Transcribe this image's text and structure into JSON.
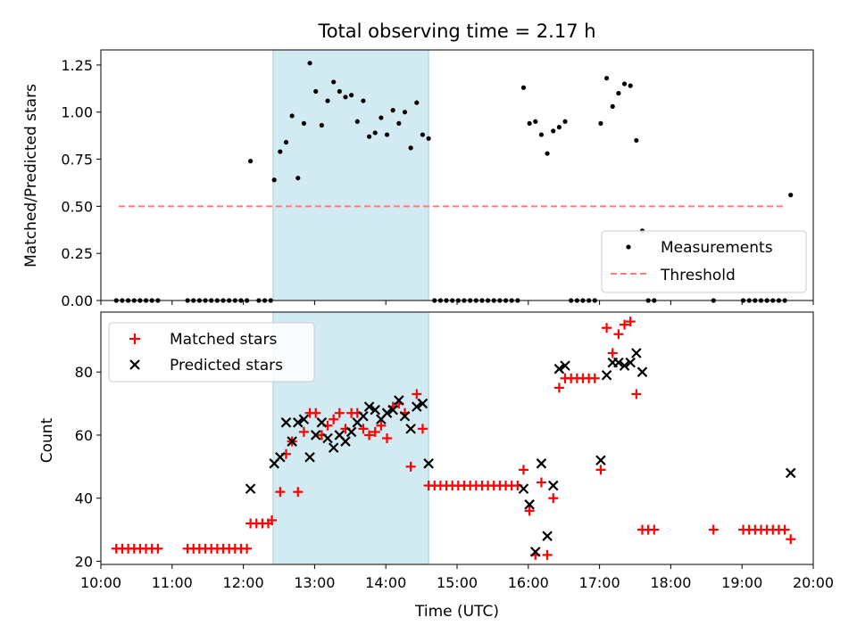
{
  "chart_data": [
    {
      "type": "scatter",
      "title": "Total observing time = 2.17 h",
      "xlabel": "",
      "ylabel": "Matched/Predicted stars",
      "xlim": [
        "10:00",
        "20:00"
      ],
      "ylim": [
        0,
        1.33
      ],
      "yticks": [
        "0.00",
        "0.25",
        "0.50",
        "0.75",
        "1.00",
        "1.25"
      ],
      "shaded_span": [
        "12:25",
        "14:36"
      ],
      "legend_position": "lower right",
      "series": [
        {
          "name": "Measurements",
          "marker": "dot",
          "color": "#000000",
          "points": [
            [
              "10:13",
              0
            ],
            [
              "10:18",
              0
            ],
            [
              "10:23",
              0
            ],
            [
              "10:28",
              0
            ],
            [
              "10:33",
              0
            ],
            [
              "10:38",
              0
            ],
            [
              "10:43",
              0
            ],
            [
              "10:48",
              0
            ],
            [
              "11:13",
              0
            ],
            [
              "11:18",
              0
            ],
            [
              "11:23",
              0
            ],
            [
              "11:28",
              0
            ],
            [
              "11:33",
              0
            ],
            [
              "11:38",
              0
            ],
            [
              "11:43",
              0
            ],
            [
              "11:48",
              0
            ],
            [
              "11:53",
              0
            ],
            [
              "11:58",
              0
            ],
            [
              "12:03",
              0
            ],
            [
              "12:13",
              0
            ],
            [
              "12:18",
              0
            ],
            [
              "12:23",
              0
            ],
            [
              "12:06",
              0.74
            ],
            [
              "12:26",
              0.64
            ],
            [
              "12:31",
              0.79
            ],
            [
              "12:36",
              0.84
            ],
            [
              "12:41",
              0.98
            ],
            [
              "12:46",
              0.65
            ],
            [
              "12:51",
              0.94
            ],
            [
              "12:56",
              1.26
            ],
            [
              "13:01",
              1.11
            ],
            [
              "13:06",
              0.93
            ],
            [
              "13:11",
              1.06
            ],
            [
              "13:16",
              1.16
            ],
            [
              "13:21",
              1.11
            ],
            [
              "13:26",
              1.08
            ],
            [
              "13:31",
              1.09
            ],
            [
              "13:36",
              0.95
            ],
            [
              "13:41",
              1.06
            ],
            [
              "13:46",
              0.87
            ],
            [
              "13:51",
              0.89
            ],
            [
              "13:56",
              0.97
            ],
            [
              "14:01",
              0.88
            ],
            [
              "14:06",
              1.01
            ],
            [
              "14:11",
              0.94
            ],
            [
              "14:16",
              1.0
            ],
            [
              "14:21",
              0.81
            ],
            [
              "14:26",
              1.05
            ],
            [
              "14:31",
              0.88
            ],
            [
              "14:36",
              0.86
            ],
            [
              "14:41",
              0
            ],
            [
              "14:46",
              0
            ],
            [
              "14:51",
              0
            ],
            [
              "14:56",
              0
            ],
            [
              "15:01",
              0
            ],
            [
              "15:06",
              0
            ],
            [
              "15:11",
              0
            ],
            [
              "15:16",
              0
            ],
            [
              "15:21",
              0
            ],
            [
              "15:26",
              0
            ],
            [
              "15:31",
              0
            ],
            [
              "15:36",
              0
            ],
            [
              "15:41",
              0
            ],
            [
              "15:46",
              0
            ],
            [
              "15:51",
              0
            ],
            [
              "15:56",
              1.13
            ],
            [
              "16:01",
              0.94
            ],
            [
              "16:06",
              0.95
            ],
            [
              "16:11",
              0.88
            ],
            [
              "16:16",
              0.78
            ],
            [
              "16:21",
              0.9
            ],
            [
              "16:26",
              0.92
            ],
            [
              "16:31",
              0.95
            ],
            [
              "16:36",
              0
            ],
            [
              "16:41",
              0
            ],
            [
              "16:46",
              0
            ],
            [
              "16:51",
              0
            ],
            [
              "16:56",
              0
            ],
            [
              "17:01",
              0.94
            ],
            [
              "17:06",
              1.18
            ],
            [
              "17:11",
              1.03
            ],
            [
              "17:16",
              1.1
            ],
            [
              "17:21",
              1.15
            ],
            [
              "17:26",
              1.14
            ],
            [
              "17:31",
              0.85
            ],
            [
              "17:36",
              0.37
            ],
            [
              "17:41",
              0
            ],
            [
              "17:46",
              0
            ],
            [
              "18:36",
              0
            ],
            [
              "19:01",
              0
            ],
            [
              "19:06",
              0
            ],
            [
              "19:11",
              0
            ],
            [
              "19:16",
              0
            ],
            [
              "19:21",
              0
            ],
            [
              "19:26",
              0
            ],
            [
              "19:31",
              0
            ],
            [
              "19:36",
              0
            ],
            [
              "19:41",
              0.56
            ]
          ]
        },
        {
          "name": "Threshold",
          "marker": "dashed-line",
          "color": "#ff7b7b",
          "points": [
            [
              "10:15",
              0.5
            ],
            [
              "19:36",
              0.5
            ]
          ]
        }
      ]
    },
    {
      "type": "scatter",
      "title": "",
      "xlabel": "Time (UTC)",
      "ylabel": "Count",
      "xlim": [
        "10:00",
        "20:00"
      ],
      "ylim": [
        19,
        99
      ],
      "xticks": [
        "10:00",
        "11:00",
        "12:00",
        "13:00",
        "14:00",
        "15:00",
        "16:00",
        "17:00",
        "18:00",
        "19:00",
        "20:00"
      ],
      "yticks": [
        "20",
        "40",
        "60",
        "80"
      ],
      "shaded_span": [
        "12:25",
        "14:36"
      ],
      "legend_position": "upper left",
      "series": [
        {
          "name": "Matched stars",
          "marker": "plus",
          "color": "#ff0000",
          "points": [
            [
              "10:13",
              24
            ],
            [
              "10:18",
              24
            ],
            [
              "10:23",
              24
            ],
            [
              "10:28",
              24
            ],
            [
              "10:33",
              24
            ],
            [
              "10:38",
              24
            ],
            [
              "10:43",
              24
            ],
            [
              "10:48",
              24
            ],
            [
              "11:13",
              24
            ],
            [
              "11:18",
              24
            ],
            [
              "11:23",
              24
            ],
            [
              "11:28",
              24
            ],
            [
              "11:33",
              24
            ],
            [
              "11:38",
              24
            ],
            [
              "11:43",
              24
            ],
            [
              "11:48",
              24
            ],
            [
              "11:53",
              24
            ],
            [
              "11:58",
              24
            ],
            [
              "12:03",
              24
            ],
            [
              "12:06",
              32
            ],
            [
              "12:11",
              32
            ],
            [
              "12:16",
              32
            ],
            [
              "12:21",
              32
            ],
            [
              "12:24",
              33
            ],
            [
              "12:31",
              42
            ],
            [
              "12:36",
              54
            ],
            [
              "12:41",
              58
            ],
            [
              "12:46",
              42
            ],
            [
              "12:51",
              61
            ],
            [
              "12:56",
              67
            ],
            [
              "13:01",
              67
            ],
            [
              "13:06",
              60
            ],
            [
              "13:11",
              63
            ],
            [
              "13:16",
              65
            ],
            [
              "13:21",
              67
            ],
            [
              "13:26",
              62
            ],
            [
              "13:31",
              67
            ],
            [
              "13:36",
              67
            ],
            [
              "13:41",
              62
            ],
            [
              "13:46",
              60
            ],
            [
              "13:51",
              61
            ],
            [
              "13:56",
              63
            ],
            [
              "14:01",
              59
            ],
            [
              "14:06",
              69
            ],
            [
              "14:11",
              70
            ],
            [
              "14:16",
              67
            ],
            [
              "14:21",
              50
            ],
            [
              "14:26",
              73
            ],
            [
              "14:31",
              62
            ],
            [
              "14:36",
              44
            ],
            [
              "14:41",
              44
            ],
            [
              "14:46",
              44
            ],
            [
              "14:51",
              44
            ],
            [
              "14:56",
              44
            ],
            [
              "15:01",
              44
            ],
            [
              "15:06",
              44
            ],
            [
              "15:11",
              44
            ],
            [
              "15:16",
              44
            ],
            [
              "15:21",
              44
            ],
            [
              "15:26",
              44
            ],
            [
              "15:31",
              44
            ],
            [
              "15:36",
              44
            ],
            [
              "15:41",
              44
            ],
            [
              "15:46",
              44
            ],
            [
              "15:51",
              44
            ],
            [
              "15:56",
              49
            ],
            [
              "16:01",
              36
            ],
            [
              "16:06",
              22
            ],
            [
              "16:11",
              45
            ],
            [
              "16:16",
              22
            ],
            [
              "16:21",
              40
            ],
            [
              "16:26",
              75
            ],
            [
              "16:31",
              78
            ],
            [
              "16:36",
              78
            ],
            [
              "16:41",
              78
            ],
            [
              "16:46",
              78
            ],
            [
              "16:51",
              78
            ],
            [
              "16:56",
              78
            ],
            [
              "17:01",
              49
            ],
            [
              "17:06",
              94
            ],
            [
              "17:11",
              86
            ],
            [
              "17:16",
              92
            ],
            [
              "17:21",
              95
            ],
            [
              "17:26",
              96
            ],
            [
              "17:31",
              73
            ],
            [
              "17:36",
              30
            ],
            [
              "17:41",
              30
            ],
            [
              "17:46",
              30
            ],
            [
              "18:36",
              30
            ],
            [
              "19:01",
              30
            ],
            [
              "19:06",
              30
            ],
            [
              "19:11",
              30
            ],
            [
              "19:16",
              30
            ],
            [
              "19:21",
              30
            ],
            [
              "19:26",
              30
            ],
            [
              "19:31",
              30
            ],
            [
              "19:36",
              30
            ],
            [
              "19:41",
              27
            ]
          ]
        },
        {
          "name": "Predicted stars",
          "marker": "x",
          "color": "#000000",
          "points": [
            [
              "12:06",
              43
            ],
            [
              "12:26",
              51
            ],
            [
              "12:31",
              53
            ],
            [
              "12:36",
              64
            ],
            [
              "12:41",
              58
            ],
            [
              "12:46",
              64
            ],
            [
              "12:51",
              65
            ],
            [
              "12:56",
              53
            ],
            [
              "13:01",
              60
            ],
            [
              "13:06",
              64
            ],
            [
              "13:11",
              59
            ],
            [
              "13:16",
              56
            ],
            [
              "13:21",
              60
            ],
            [
              "13:26",
              58
            ],
            [
              "13:31",
              61
            ],
            [
              "13:36",
              64
            ],
            [
              "13:41",
              66
            ],
            [
              "13:46",
              69
            ],
            [
              "13:51",
              68
            ],
            [
              "13:56",
              65
            ],
            [
              "14:01",
              67
            ],
            [
              "14:06",
              68
            ],
            [
              "14:11",
              71
            ],
            [
              "14:16",
              66
            ],
            [
              "14:21",
              62
            ],
            [
              "14:26",
              69
            ],
            [
              "14:31",
              70
            ],
            [
              "14:36",
              51
            ],
            [
              "15:56",
              43
            ],
            [
              "16:01",
              38
            ],
            [
              "16:06",
              23
            ],
            [
              "16:11",
              51
            ],
            [
              "16:16",
              28
            ],
            [
              "16:21",
              44
            ],
            [
              "16:26",
              81
            ],
            [
              "16:31",
              82
            ],
            [
              "17:01",
              52
            ],
            [
              "17:06",
              79
            ],
            [
              "17:11",
              83
            ],
            [
              "17:16",
              83
            ],
            [
              "17:21",
              82
            ],
            [
              "17:26",
              83
            ],
            [
              "17:31",
              86
            ],
            [
              "17:36",
              80
            ],
            [
              "19:41",
              48
            ]
          ]
        }
      ]
    }
  ]
}
